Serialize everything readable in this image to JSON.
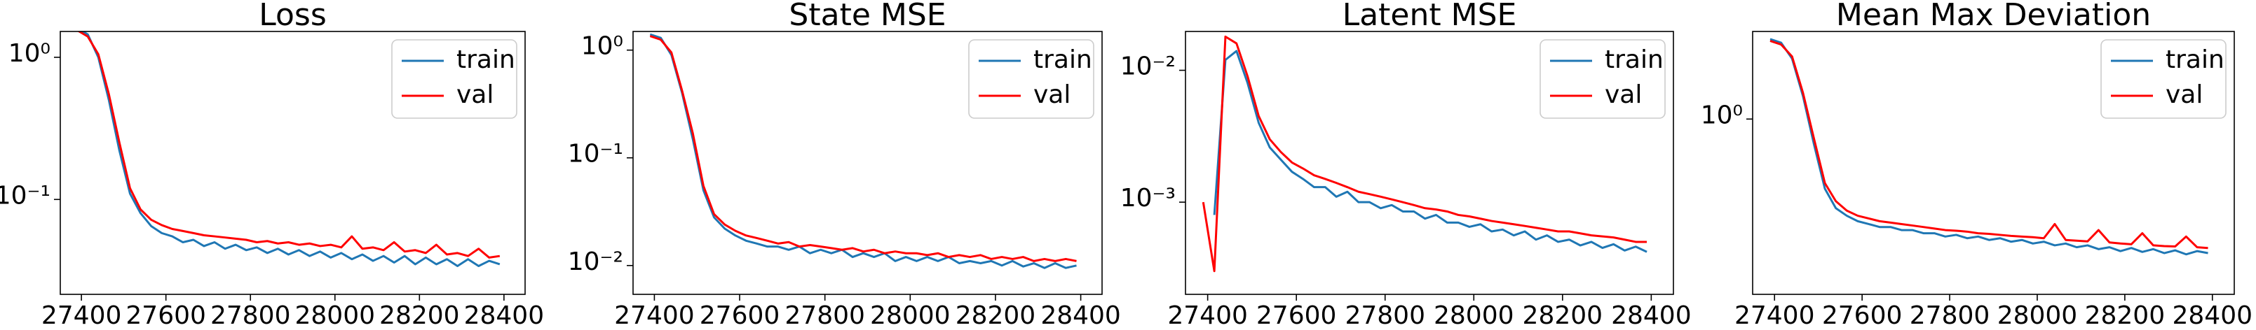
{
  "chart_data": [
    {
      "type": "line",
      "title": "Loss",
      "yscale": "log",
      "legend": "upper right",
      "xlim": [
        27350,
        28450
      ],
      "ylim": [
        0.0215,
        1.52
      ],
      "xticks": [
        27400,
        27600,
        27800,
        28000,
        28200,
        28400
      ],
      "yticks": [
        {
          "value": 1,
          "label": "10⁰"
        },
        {
          "value": 0.1,
          "label": "10⁻¹"
        }
      ],
      "x": [
        27390,
        27415,
        27440,
        27465,
        27490,
        27515,
        27540,
        27565,
        27590,
        27615,
        27640,
        27665,
        27690,
        27715,
        27740,
        27765,
        27790,
        27815,
        27840,
        27865,
        27890,
        27915,
        27940,
        27965,
        27990,
        28015,
        28040,
        28065,
        28090,
        28115,
        28140,
        28165,
        28190,
        28215,
        28240,
        28265,
        28290,
        28315,
        28340,
        28365,
        28390
      ],
      "series": [
        {
          "name": "train",
          "color": "#1f77b4",
          "values": [
            1.6,
            1.45,
            1.0,
            0.5,
            0.22,
            0.11,
            0.08,
            0.065,
            0.058,
            0.055,
            0.05,
            0.052,
            0.047,
            0.05,
            0.045,
            0.048,
            0.044,
            0.046,
            0.042,
            0.045,
            0.041,
            0.044,
            0.04,
            0.043,
            0.039,
            0.042,
            0.038,
            0.041,
            0.037,
            0.04,
            0.036,
            0.04,
            0.035,
            0.039,
            0.035,
            0.038,
            0.034,
            0.038,
            0.034,
            0.037,
            0.035
          ]
        },
        {
          "name": "val",
          "color": "#ff0000",
          "values": [
            1.55,
            1.4,
            1.05,
            0.55,
            0.25,
            0.12,
            0.085,
            0.072,
            0.066,
            0.062,
            0.06,
            0.058,
            0.056,
            0.055,
            0.054,
            0.053,
            0.052,
            0.05,
            0.051,
            0.049,
            0.05,
            0.048,
            0.049,
            0.047,
            0.048,
            0.046,
            0.055,
            0.045,
            0.046,
            0.044,
            0.05,
            0.043,
            0.044,
            0.042,
            0.048,
            0.041,
            0.042,
            0.04,
            0.045,
            0.039,
            0.04
          ]
        }
      ]
    },
    {
      "type": "line",
      "title": "State MSE",
      "yscale": "log",
      "legend": "upper right",
      "xlim": [
        27350,
        28450
      ],
      "ylim": [
        0.0054,
        1.49
      ],
      "xticks": [
        27400,
        27600,
        27800,
        28000,
        28200,
        28400
      ],
      "yticks": [
        {
          "value": 1,
          "label": "10⁰"
        },
        {
          "value": 0.1,
          "label": "10⁻¹"
        },
        {
          "value": 0.01,
          "label": "10⁻²"
        }
      ],
      "x": [
        27390,
        27415,
        27440,
        27465,
        27490,
        27515,
        27540,
        27565,
        27590,
        27615,
        27640,
        27665,
        27690,
        27715,
        27740,
        27765,
        27790,
        27815,
        27840,
        27865,
        27890,
        27915,
        27940,
        27965,
        27990,
        28015,
        28040,
        28065,
        28090,
        28115,
        28140,
        28165,
        28190,
        28215,
        28240,
        28265,
        28290,
        28315,
        28340,
        28365,
        28390
      ],
      "series": [
        {
          "name": "train",
          "color": "#1f77b4",
          "values": [
            1.4,
            1.3,
            0.9,
            0.4,
            0.15,
            0.05,
            0.028,
            0.022,
            0.019,
            0.017,
            0.016,
            0.015,
            0.015,
            0.014,
            0.015,
            0.013,
            0.014,
            0.013,
            0.014,
            0.012,
            0.013,
            0.012,
            0.013,
            0.011,
            0.012,
            0.011,
            0.012,
            0.011,
            0.012,
            0.0105,
            0.011,
            0.0105,
            0.011,
            0.01,
            0.011,
            0.0098,
            0.0105,
            0.0095,
            0.0105,
            0.0095,
            0.01
          ]
        },
        {
          "name": "val",
          "color": "#ff0000",
          "values": [
            1.35,
            1.25,
            0.95,
            0.42,
            0.17,
            0.055,
            0.03,
            0.024,
            0.021,
            0.019,
            0.018,
            0.017,
            0.016,
            0.0165,
            0.015,
            0.0155,
            0.015,
            0.0145,
            0.014,
            0.0145,
            0.0135,
            0.014,
            0.013,
            0.0135,
            0.013,
            0.013,
            0.0125,
            0.013,
            0.012,
            0.0125,
            0.012,
            0.0125,
            0.0115,
            0.012,
            0.0115,
            0.012,
            0.011,
            0.0115,
            0.011,
            0.0115,
            0.011
          ]
        }
      ]
    },
    {
      "type": "line",
      "title": "Latent MSE",
      "yscale": "log",
      "legend": "upper right",
      "xlim": [
        27350,
        28450
      ],
      "ylim": [
        0.0002,
        0.0197
      ],
      "xticks": [
        27400,
        27600,
        27800,
        28000,
        28200,
        28400
      ],
      "yticks": [
        {
          "value": 0.01,
          "label": "10⁻²"
        },
        {
          "value": 0.001,
          "label": "10⁻³"
        }
      ],
      "x": [
        27390,
        27415,
        27440,
        27465,
        27490,
        27515,
        27540,
        27565,
        27590,
        27615,
        27640,
        27665,
        27690,
        27715,
        27740,
        27765,
        27790,
        27815,
        27840,
        27865,
        27890,
        27915,
        27940,
        27965,
        27990,
        28015,
        28040,
        28065,
        28090,
        28115,
        28140,
        28165,
        28190,
        28215,
        28240,
        28265,
        28290,
        28315,
        28340,
        28365,
        28390
      ],
      "series": [
        {
          "name": "train",
          "color": "#1f77b4",
          "values": [
            null,
            0.0008,
            0.012,
            0.014,
            0.008,
            0.004,
            0.0026,
            0.0021,
            0.0017,
            0.0015,
            0.0013,
            0.0013,
            0.0011,
            0.0012,
            0.001,
            0.001,
            0.0009,
            0.00095,
            0.00085,
            0.00085,
            0.00075,
            0.0008,
            0.0007,
            0.0007,
            0.00065,
            0.00068,
            0.0006,
            0.00062,
            0.00056,
            0.0006,
            0.00052,
            0.00056,
            0.0005,
            0.00052,
            0.00047,
            0.0005,
            0.00045,
            0.00048,
            0.00043,
            0.00046,
            0.00042
          ]
        },
        {
          "name": "val",
          "color": "#ff0000",
          "values": [
            0.001,
            0.0003,
            0.018,
            0.016,
            0.009,
            0.0045,
            0.003,
            0.0024,
            0.002,
            0.0018,
            0.0016,
            0.0015,
            0.0014,
            0.0013,
            0.0012,
            0.00115,
            0.0011,
            0.00105,
            0.001,
            0.00095,
            0.0009,
            0.00088,
            0.00085,
            0.0008,
            0.00078,
            0.00075,
            0.00072,
            0.0007,
            0.00068,
            0.00066,
            0.00064,
            0.00062,
            0.0006,
            0.0006,
            0.00058,
            0.00056,
            0.00055,
            0.00054,
            0.00052,
            0.0005,
            0.0005
          ]
        }
      ]
    },
    {
      "type": "line",
      "title": "Mean Max Deviation",
      "yscale": "log",
      "legend": "upper right",
      "xlim": [
        27350,
        28450
      ],
      "ylim": [
        0.134,
        2.73
      ],
      "xticks": [
        27400,
        27600,
        27800,
        28000,
        28200,
        28400
      ],
      "yticks": [
        {
          "value": 1,
          "label": "10⁰"
        }
      ],
      "x": [
        27390,
        27415,
        27440,
        27465,
        27490,
        27515,
        27540,
        27565,
        27590,
        27615,
        27640,
        27665,
        27690,
        27715,
        27740,
        27765,
        27790,
        27815,
        27840,
        27865,
        27890,
        27915,
        27940,
        27965,
        27990,
        28015,
        28040,
        28065,
        28090,
        28115,
        28140,
        28165,
        28190,
        28215,
        28240,
        28265,
        28290,
        28315,
        28340,
        28365,
        28390
      ],
      "series": [
        {
          "name": "train",
          "color": "#1f77b4",
          "values": [
            2.5,
            2.4,
            2.0,
            1.3,
            0.75,
            0.45,
            0.36,
            0.33,
            0.31,
            0.3,
            0.29,
            0.29,
            0.28,
            0.28,
            0.27,
            0.27,
            0.26,
            0.265,
            0.255,
            0.26,
            0.25,
            0.255,
            0.245,
            0.25,
            0.24,
            0.245,
            0.235,
            0.24,
            0.23,
            0.235,
            0.225,
            0.23,
            0.22,
            0.228,
            0.218,
            0.225,
            0.215,
            0.222,
            0.212,
            0.22,
            0.215
          ]
        },
        {
          "name": "val",
          "color": "#ff0000",
          "values": [
            2.45,
            2.35,
            2.05,
            1.35,
            0.8,
            0.48,
            0.39,
            0.35,
            0.33,
            0.32,
            0.31,
            0.305,
            0.3,
            0.295,
            0.29,
            0.285,
            0.28,
            0.278,
            0.275,
            0.27,
            0.268,
            0.265,
            0.262,
            0.26,
            0.258,
            0.255,
            0.3,
            0.25,
            0.248,
            0.246,
            0.28,
            0.243,
            0.24,
            0.238,
            0.27,
            0.235,
            0.233,
            0.232,
            0.26,
            0.23,
            0.228
          ]
        }
      ]
    }
  ]
}
